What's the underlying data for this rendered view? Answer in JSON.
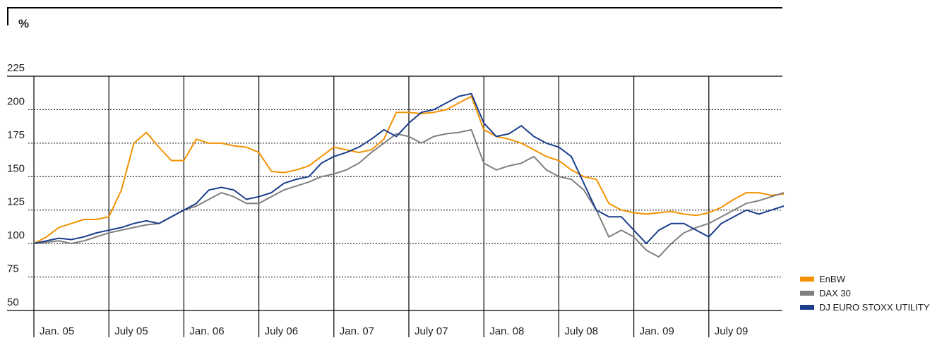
{
  "chart_data": {
    "type": "line",
    "ylabel": "%",
    "x": [
      0,
      1,
      2,
      3,
      4,
      5,
      6,
      7,
      8,
      9,
      10,
      11,
      12,
      13,
      14,
      15,
      16,
      17,
      18,
      19,
      20,
      21,
      22,
      23,
      24,
      25,
      26,
      27,
      28,
      29,
      30,
      31,
      32,
      33,
      34,
      35,
      36,
      37,
      38,
      39,
      40,
      41,
      42,
      43,
      44,
      45,
      46,
      47,
      48,
      49,
      50,
      51,
      52,
      53,
      54,
      55,
      56,
      57,
      58,
      59,
      60
    ],
    "xlim": [
      0,
      60
    ],
    "xticks": [
      {
        "value": 0,
        "label": "Jan. 05"
      },
      {
        "value": 6,
        "label": "July 05"
      },
      {
        "value": 12,
        "label": "Jan. 06"
      },
      {
        "value": 18,
        "label": "July 06"
      },
      {
        "value": 24,
        "label": "Jan. 07"
      },
      {
        "value": 30,
        "label": "July  07"
      },
      {
        "value": 36,
        "label": "Jan. 08"
      },
      {
        "value": 42,
        "label": "July  08"
      },
      {
        "value": 48,
        "label": "Jan. 09"
      },
      {
        "value": 54,
        "label": "July 09"
      }
    ],
    "ylim": [
      50,
      225
    ],
    "yticks": [
      50,
      75,
      100,
      125,
      150,
      175,
      200,
      225
    ],
    "grid": true,
    "legend": "lower right",
    "series": [
      {
        "name": "EnBW",
        "color": "#f39200",
        "values": [
          100,
          105,
          112,
          115,
          118,
          118,
          120,
          140,
          175,
          183,
          172,
          162,
          162,
          178,
          175,
          175,
          173,
          172,
          168,
          154,
          153,
          155,
          158,
          165,
          172,
          170,
          168,
          170,
          178,
          198,
          198,
          197,
          198,
          200,
          205,
          210,
          185,
          180,
          178,
          175,
          170,
          165,
          162,
          155,
          150,
          148,
          130,
          125,
          123,
          122,
          123,
          124,
          122,
          121,
          123,
          127,
          133,
          138,
          138,
          136,
          137
        ]
      },
      {
        "name": "DAX 30",
        "color": "#7f7f7f",
        "values": [
          100,
          101,
          102,
          100,
          102,
          105,
          108,
          110,
          112,
          114,
          115,
          120,
          125,
          128,
          133,
          138,
          135,
          130,
          130,
          135,
          140,
          143,
          146,
          150,
          152,
          155,
          160,
          168,
          175,
          182,
          180,
          175,
          180,
          182,
          183,
          185,
          160,
          155,
          158,
          160,
          165,
          155,
          150,
          148,
          140,
          125,
          105,
          110,
          105,
          95,
          90,
          100,
          108,
          112,
          115,
          120,
          125,
          130,
          132,
          135,
          138
        ]
      },
      {
        "name": "DJ EURO STOXX UTILITY",
        "color": "#1a3e8c",
        "values": [
          100,
          102,
          104,
          103,
          105,
          108,
          110,
          112,
          115,
          117,
          115,
          120,
          125,
          130,
          140,
          142,
          140,
          133,
          135,
          138,
          145,
          148,
          150,
          160,
          165,
          168,
          172,
          178,
          185,
          180,
          190,
          198,
          200,
          205,
          210,
          212,
          190,
          180,
          182,
          188,
          180,
          175,
          172,
          165,
          145,
          125,
          120,
          120,
          110,
          100,
          110,
          115,
          115,
          110,
          105,
          115,
          120,
          125,
          122,
          125,
          128
        ]
      }
    ]
  }
}
